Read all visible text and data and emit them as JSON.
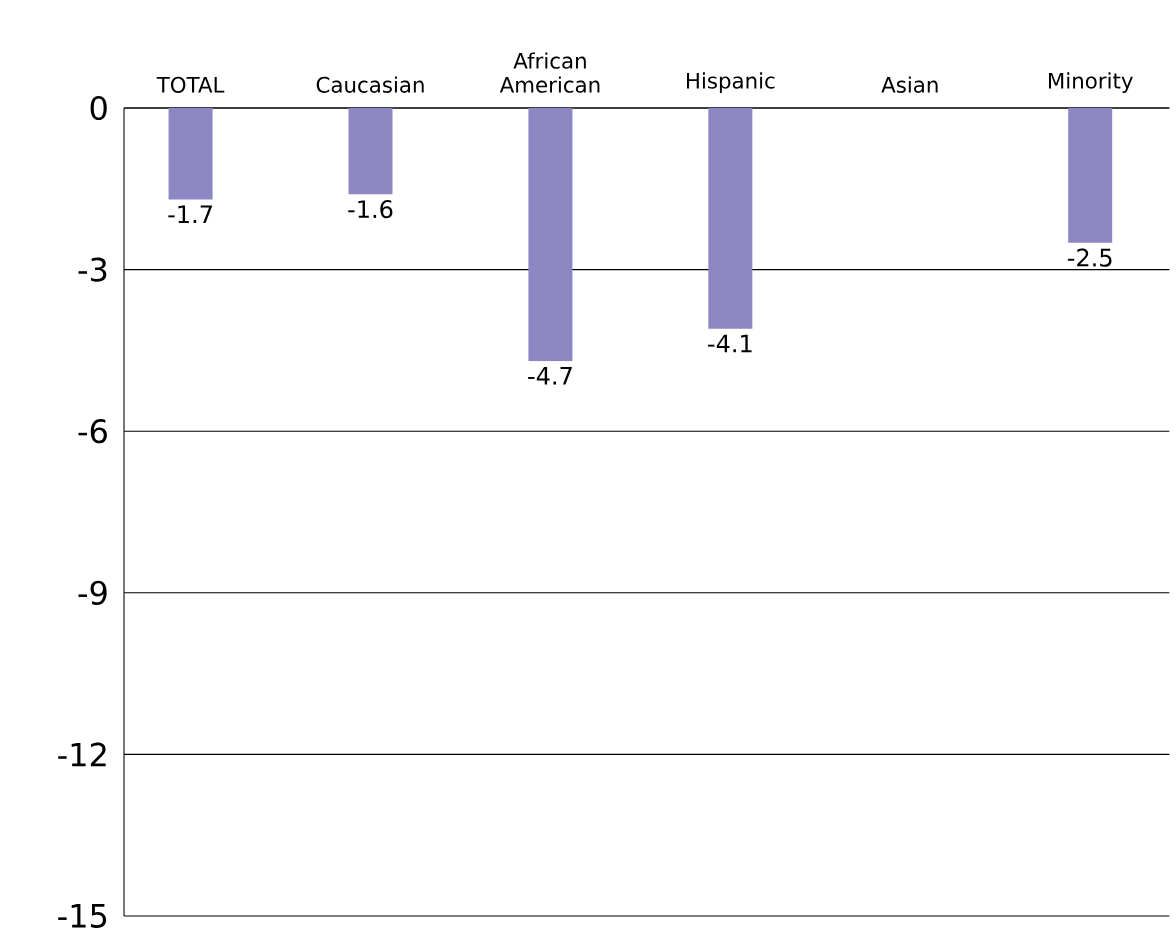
{
  "chart_data": {
    "type": "bar",
    "categories": [
      "TOTAL",
      "Caucasian",
      "African American",
      "Hispanic",
      "Asian",
      "Minority"
    ],
    "values": [
      -1.7,
      -1.6,
      -4.7,
      -4.1,
      null,
      -2.5
    ],
    "color": "#8c86c3",
    "ylim": [
      -15,
      0
    ],
    "yticks": [
      -15,
      -12,
      -9,
      -6,
      -3,
      0
    ],
    "grid": "y",
    "data_labels": true
  }
}
